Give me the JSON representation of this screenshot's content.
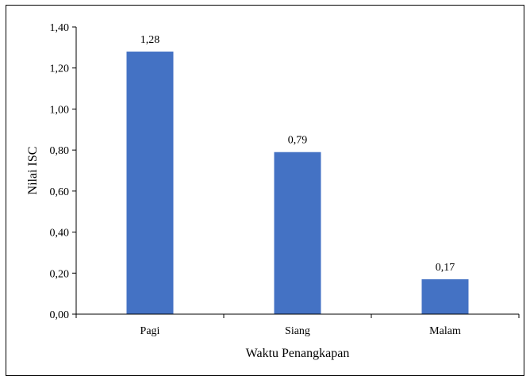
{
  "chart_data": {
    "type": "bar",
    "categories": [
      "Pagi",
      "Siang",
      "Malam"
    ],
    "values": [
      1.28,
      0.79,
      0.17
    ],
    "data_labels": [
      "1,28",
      "0,79",
      "0,17"
    ],
    "xlabel": "Waktu Penangkapan",
    "ylabel": "Nilai ISC",
    "ylim": [
      0,
      1.4
    ],
    "yticks": [
      0,
      0.2,
      0.4,
      0.6,
      0.8,
      1.0,
      1.2,
      1.4
    ],
    "ytick_labels": [
      "0,00",
      "0,20",
      "0,40",
      "0,60",
      "0,80",
      "1,00",
      "1,20",
      "1,40"
    ],
    "grid": false,
    "legend": "none",
    "bar_color": "#4472C4"
  }
}
